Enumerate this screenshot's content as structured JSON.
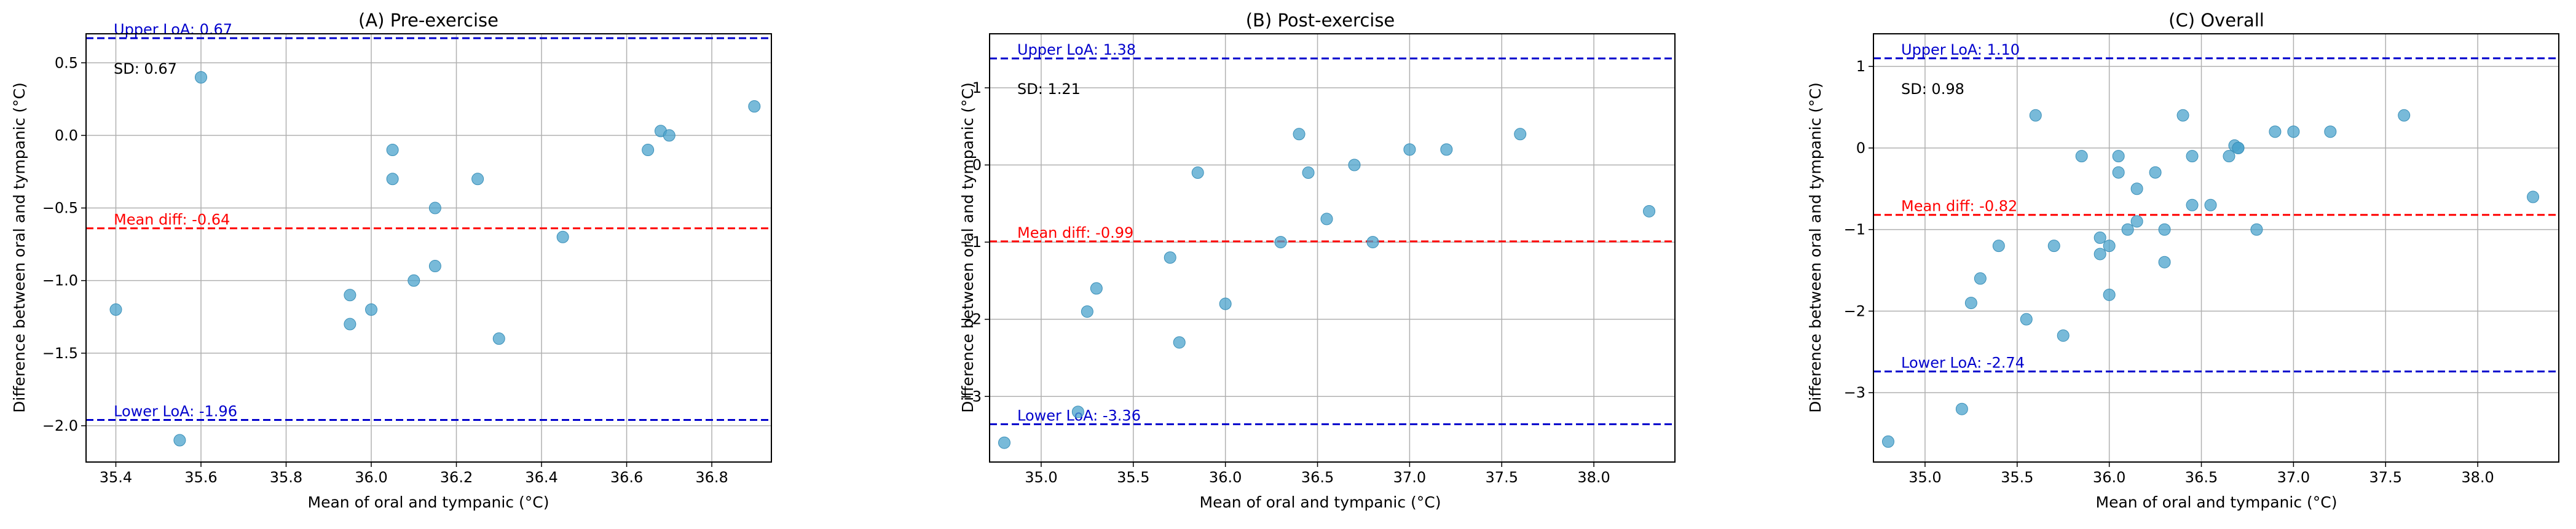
{
  "chart_data": [
    {
      "type": "scatter",
      "title": "(A) Pre-exercise",
      "xlabel": "Mean of oral and tympanic (°C)",
      "ylabel": "Difference between oral and tympanic (°C)",
      "xlim": [
        35.33,
        36.94
      ],
      "ylim": [
        -2.25,
        0.7
      ],
      "xticks": [
        35.4,
        35.6,
        35.8,
        36.0,
        36.2,
        36.4,
        36.6,
        36.8
      ],
      "xtick_labels": [
        "35.4",
        "35.6",
        "35.8",
        "36.0",
        "36.2",
        "36.4",
        "36.6",
        "36.8"
      ],
      "yticks": [
        -2.0,
        -1.5,
        -1.0,
        -0.5,
        0.0,
        0.5
      ],
      "ytick_labels": [
        "−2.0",
        "−1.5",
        "−1.0",
        "−0.5",
        "0.0",
        "0.5"
      ],
      "grid": true,
      "points": {
        "x": [
          35.4,
          35.55,
          35.6,
          35.95,
          35.95,
          36.0,
          36.05,
          36.05,
          36.1,
          36.15,
          36.15,
          36.25,
          36.3,
          36.45,
          36.65,
          36.68,
          36.7,
          36.9
        ],
        "y": [
          -1.2,
          -2.1,
          0.4,
          -1.1,
          -1.3,
          -1.2,
          -0.1,
          -0.3,
          -1.0,
          -0.5,
          -0.9,
          -0.3,
          -1.4,
          -0.7,
          -0.1,
          0.03,
          0.0,
          0.2
        ]
      },
      "lines": {
        "upper": {
          "value": 0.67,
          "label": "Upper LoA: 0.67",
          "color": "#0000cc"
        },
        "mean": {
          "value": -0.64,
          "label": "Mean diff: -0.64",
          "color": "#ff0000"
        },
        "lower": {
          "value": -1.96,
          "label": "Lower LoA: -1.96",
          "color": "#0000cc"
        }
      },
      "sd_label": "SD: 0.67"
    },
    {
      "type": "scatter",
      "title": "(B) Post-exercise",
      "xlabel": "Mean of oral and tympanic (°C)",
      "ylabel": "Difference between oral and tympanic (°C)",
      "xlim": [
        34.72,
        38.44
      ],
      "ylim": [
        -3.85,
        1.7
      ],
      "xticks": [
        35.0,
        35.5,
        36.0,
        36.5,
        37.0,
        37.5,
        38.0
      ],
      "xtick_labels": [
        "35.0",
        "35.5",
        "36.0",
        "36.5",
        "37.0",
        "37.5",
        "38.0"
      ],
      "yticks": [
        -3,
        -2,
        -1,
        0,
        1
      ],
      "ytick_labels": [
        "−3",
        "−2",
        "−1",
        "0",
        "1"
      ],
      "grid": true,
      "points": {
        "x": [
          34.8,
          35.2,
          35.25,
          35.3,
          35.7,
          35.75,
          35.85,
          36.0,
          36.3,
          36.4,
          36.45,
          36.55,
          36.7,
          36.8,
          37.0,
          37.2,
          37.6,
          38.3
        ],
        "y": [
          -3.6,
          -3.2,
          -1.9,
          -1.6,
          -1.2,
          -2.3,
          -0.1,
          -1.8,
          -1.0,
          0.4,
          -0.1,
          -0.7,
          0.0,
          -1.0,
          0.2,
          0.2,
          0.4,
          -0.6
        ]
      },
      "lines": {
        "upper": {
          "value": 1.38,
          "label": "Upper LoA: 1.38",
          "color": "#0000cc"
        },
        "mean": {
          "value": -0.99,
          "label": "Mean diff: -0.99",
          "color": "#ff0000"
        },
        "lower": {
          "value": -3.36,
          "label": "Lower LoA: -3.36",
          "color": "#0000cc"
        }
      },
      "sd_label": "SD: 1.21"
    },
    {
      "type": "scatter",
      "title": "(C) Overall",
      "xlabel": "Mean of oral and tympanic (°C)",
      "ylabel": "Difference between oral and tympanic (°C)",
      "xlim": [
        34.72,
        38.44
      ],
      "ylim": [
        -3.85,
        1.4
      ],
      "xticks": [
        35.0,
        35.5,
        36.0,
        36.5,
        37.0,
        37.5,
        38.0
      ],
      "xtick_labels": [
        "35.0",
        "35.5",
        "36.0",
        "36.5",
        "37.0",
        "37.5",
        "38.0"
      ],
      "yticks": [
        -3,
        -2,
        -1,
        0,
        1
      ],
      "ytick_labels": [
        "−3",
        "−2",
        "−1",
        "0",
        "1"
      ],
      "grid": true,
      "points": {
        "x": [
          34.8,
          35.2,
          35.25,
          35.3,
          35.4,
          35.55,
          35.6,
          35.7,
          35.75,
          35.85,
          35.95,
          35.95,
          36.0,
          36.0,
          36.05,
          36.05,
          36.1,
          36.15,
          36.15,
          36.25,
          36.3,
          36.3,
          36.4,
          36.45,
          36.45,
          36.55,
          36.65,
          36.68,
          36.7,
          36.7,
          36.8,
          36.9,
          37.0,
          37.2,
          37.6,
          38.3
        ],
        "y": [
          -3.6,
          -3.2,
          -1.9,
          -1.6,
          -1.2,
          -2.1,
          0.4,
          -1.2,
          -2.3,
          -0.1,
          -1.1,
          -1.3,
          -1.2,
          -1.8,
          -0.1,
          -0.3,
          -1.0,
          -0.5,
          -0.9,
          -0.3,
          -1.0,
          -1.4,
          0.4,
          -0.1,
          -0.7,
          -0.7,
          -0.1,
          0.03,
          0.0,
          0.0,
          -1.0,
          0.2,
          0.2,
          0.2,
          0.4,
          -0.6
        ]
      },
      "lines": {
        "upper": {
          "value": 1.1,
          "label": "Upper LoA: 1.10",
          "color": "#0000cc"
        },
        "mean": {
          "value": -0.82,
          "label": "Mean diff: -0.82",
          "color": "#ff0000"
        },
        "lower": {
          "value": -2.74,
          "label": "Lower LoA: -2.74",
          "color": "#0000cc"
        }
      },
      "sd_label": "SD: 0.98"
    }
  ],
  "style": {
    "point_color": "#4ba3cc",
    "point_edge": "#3a8fb8",
    "grid_color": "#b0b0b0",
    "axis_color": "#000000",
    "text_color": "#000000"
  }
}
